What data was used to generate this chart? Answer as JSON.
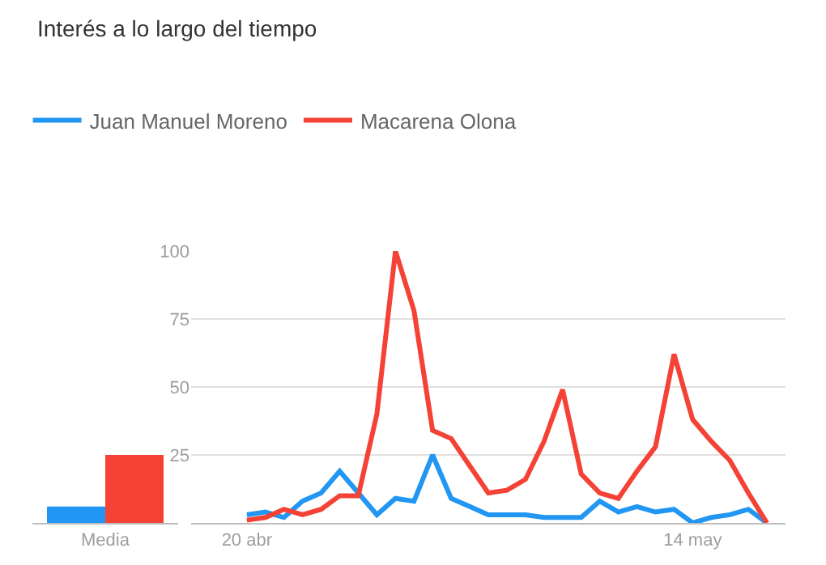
{
  "chart_data": [
    {
      "type": "bar",
      "categories": [
        "Media"
      ],
      "series": [
        {
          "color": "#2196f3",
          "values": [
            6
          ]
        },
        {
          "color": "#f44336",
          "values": [
            25
          ]
        }
      ],
      "ylim": [
        0,
        100
      ],
      "tick_labels": "x",
      "grid": false,
      "legend": false
    },
    {
      "type": "line",
      "title": "Interés a lo largo del tiempo",
      "x": [
        "--04-20",
        "--04-21",
        "--04-22",
        "--04-23",
        "--04-24",
        "--04-25",
        "--04-26",
        "--04-27",
        "--04-28",
        "--04-29",
        "--04-30",
        "--05-01",
        "--05-02",
        "--05-03",
        "--05-04",
        "--05-05",
        "--05-06",
        "--05-07",
        "--05-08",
        "--05-09",
        "--05-10",
        "--05-11",
        "--05-12",
        "--05-13",
        "--05-14",
        "--05-15",
        "--05-16",
        "--05-17",
        "--05-18"
      ],
      "series": [
        {
          "name": "Juan Manuel Moreno",
          "color": "#2196f3",
          "values": [
            3,
            4,
            2,
            8,
            11,
            19,
            11,
            3,
            9,
            8,
            25,
            9,
            6,
            3,
            3,
            3,
            2,
            2,
            2,
            8,
            4,
            6,
            4,
            5,
            0,
            2,
            3,
            5,
            0
          ]
        },
        {
          "name": "Macarena Olona",
          "color": "#f44336",
          "values": [
            1,
            2,
            5,
            3,
            5,
            10,
            10,
            40,
            100,
            78,
            34,
            31,
            21,
            11,
            12,
            16,
            30,
            49,
            18,
            11,
            9,
            19,
            28,
            62,
            38,
            30,
            23,
            11,
            0
          ]
        }
      ],
      "xlim": [
        "--04-17",
        "--05-19"
      ],
      "xticks": [
        {
          "value": "--04-20",
          "label": "20 abr"
        },
        {
          "value": "--05-14",
          "label": "14 may"
        }
      ],
      "ylim": [
        0,
        100
      ],
      "yticks": [
        25,
        50,
        75,
        100
      ],
      "grid": "y",
      "legend": "top left",
      "marker": "none",
      "line_style": "solid"
    }
  ]
}
